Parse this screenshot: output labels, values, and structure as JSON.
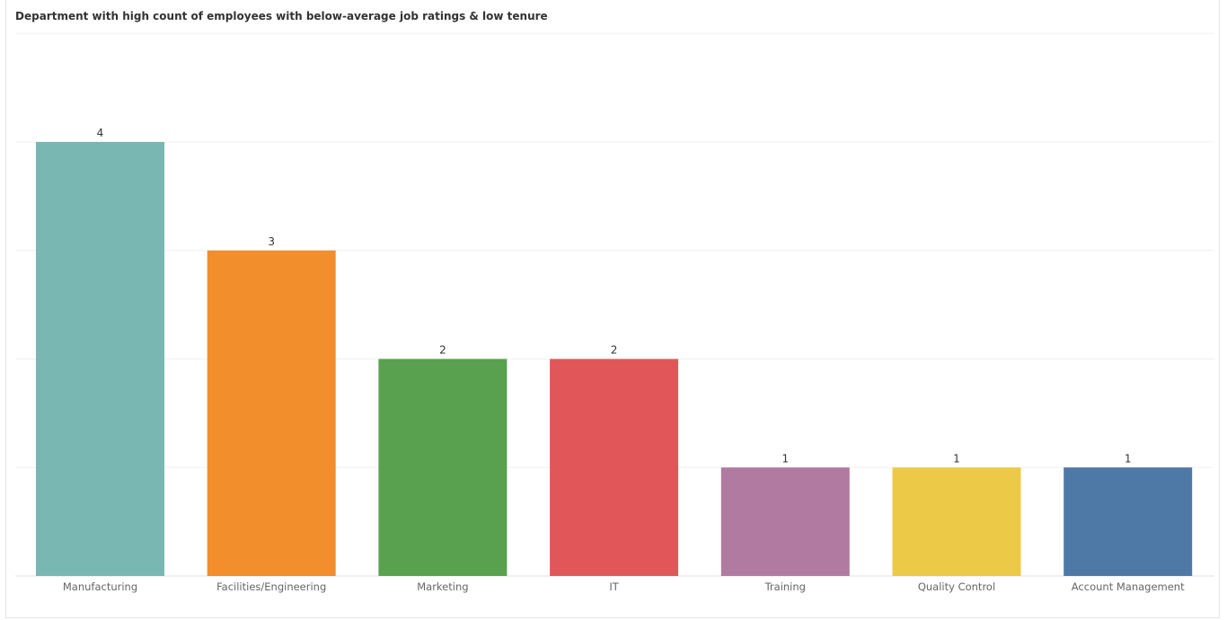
{
  "chart_data": {
    "type": "bar",
    "title": "Department with high count of employees with below-average job ratings & low tenure",
    "xlabel": "",
    "ylabel": "",
    "ylim": [
      0,
      4.2
    ],
    "grid": true,
    "categories": [
      "Manufacturing",
      "Facilities/Engineering",
      "Marketing",
      "IT",
      "Training",
      "Quality Control",
      "Account Management"
    ],
    "values": [
      4,
      3,
      2,
      2,
      1,
      1,
      1
    ],
    "colors": [
      "#79b7b2",
      "#f28e2b",
      "#59a14f",
      "#e15759",
      "#b07aa1",
      "#edc948",
      "#4e79a7"
    ]
  }
}
